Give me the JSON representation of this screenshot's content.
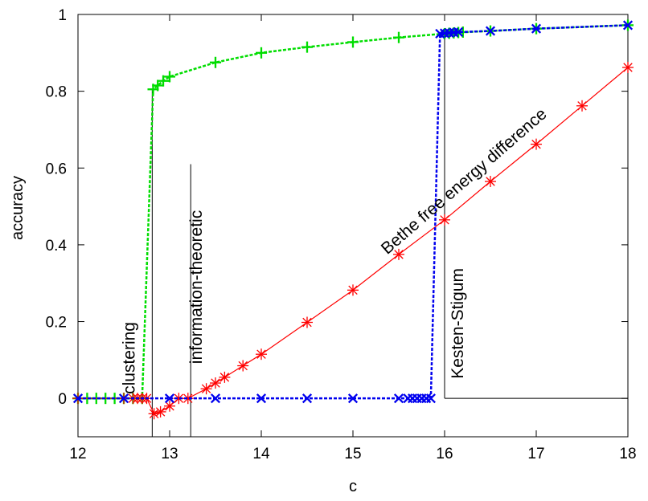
{
  "chart_data": {
    "type": "line",
    "xlabel": "c",
    "ylabel": "accuracy",
    "xlim": [
      12,
      18
    ],
    "ylim": [
      -0.1,
      1.0
    ],
    "xticks": [
      "12",
      "13",
      "14",
      "15",
      "16",
      "17",
      "18"
    ],
    "yticks": [
      "0",
      "0.2",
      "0.4",
      "0.6",
      "0.8",
      "1"
    ],
    "grid": false,
    "series": [
      {
        "color": "#00dd00",
        "marker": "plus",
        "dashed": true,
        "x": [
          12.0,
          12.1,
          12.2,
          12.3,
          12.4,
          12.5,
          12.6,
          12.7,
          12.82,
          12.87,
          12.93,
          13.0,
          13.5,
          14.0,
          14.5,
          15.0,
          15.5,
          16.0,
          16.05,
          16.1,
          16.15,
          16.2,
          16.5,
          17.0,
          18.0
        ],
        "y": [
          0,
          0,
          0,
          0,
          0,
          0,
          0,
          0,
          0.805,
          0.815,
          0.827,
          0.838,
          0.875,
          0.9,
          0.915,
          0.928,
          0.94,
          0.95,
          0.951,
          0.952,
          0.953,
          0.954,
          0.957,
          0.963,
          0.972
        ]
      },
      {
        "color": "#ff0000",
        "marker": "star",
        "dashed": false,
        "x": [
          12.0,
          12.5,
          12.6,
          12.65,
          12.7,
          12.75,
          12.83,
          12.9,
          13.0,
          13.1,
          13.2,
          13.4,
          13.5,
          13.6,
          13.8,
          14.0,
          14.5,
          15.0,
          15.5,
          16.0,
          16.5,
          17.0,
          17.5,
          18.0
        ],
        "y": [
          0,
          0,
          0,
          0,
          0,
          0,
          -0.04,
          -0.035,
          -0.02,
          0,
          0,
          0.025,
          0.04,
          0.055,
          0.085,
          0.115,
          0.198,
          0.282,
          0.375,
          0.465,
          0.565,
          0.662,
          0.762,
          0.862
        ]
      },
      {
        "color": "#0000ee",
        "marker": "cross",
        "dashed": true,
        "x": [
          12.0,
          12.5,
          13.0,
          13.5,
          14.0,
          14.5,
          15.0,
          15.5,
          15.6,
          15.65,
          15.7,
          15.75,
          15.8,
          15.85,
          15.95,
          16.0,
          16.05,
          16.1,
          16.15,
          16.5,
          17.0,
          18.0
        ],
        "y": [
          0,
          0,
          0,
          0,
          0,
          0,
          0,
          0,
          0,
          0,
          0,
          0,
          0,
          0,
          0.95,
          0.951,
          0.952,
          0.953,
          0.954,
          0.957,
          0.963,
          0.972
        ]
      }
    ],
    "vlines": [
      {
        "x": 12.81,
        "ymin": -0.1,
        "ymax": 0.805
      },
      {
        "x": 13.23,
        "ymin": -0.1,
        "ymax": 0.61
      },
      {
        "x": 16.0,
        "ymin": 0.0,
        "ymax": 0.95
      }
    ],
    "hlines": [
      {
        "y": 0.0,
        "xmin": 16.0,
        "xmax": 18.0
      }
    ],
    "annotations": [
      {
        "text": "clustering",
        "x": 12.62,
        "y": 0.105,
        "rotate": -90
      },
      {
        "text": "information-theoretic",
        "x": 13.35,
        "y": 0.29,
        "rotate": -90
      },
      {
        "text": "Kesten-Stigum",
        "x": 16.2,
        "y": 0.195,
        "rotate": -90
      },
      {
        "text": "Bethe free energy difference",
        "x": 16.25,
        "y": 0.555,
        "rotate": -41
      }
    ]
  }
}
